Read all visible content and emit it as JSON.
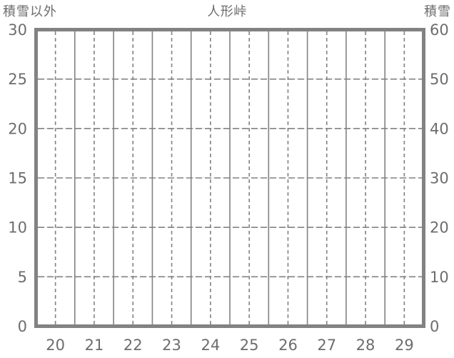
{
  "header": {
    "left_axis_title": "積雪以外",
    "chart_title": "人形峠",
    "right_axis_title": "積雪"
  },
  "colors": {
    "background": "#ffffff",
    "border": "#828282",
    "grid_line": "#828282",
    "faint_grid_underlay": "#e9e9e9",
    "label_text": "#6d6d6d"
  },
  "chart_data": {
    "type": "line",
    "title": "人形峠",
    "x_categories": [
      "20",
      "21",
      "22",
      "23",
      "24",
      "25",
      "26",
      "27",
      "28",
      "29"
    ],
    "left_axis": {
      "title": "積雪以外",
      "ticks": [
        0,
        5,
        10,
        15,
        20,
        25,
        30
      ],
      "range": [
        0,
        30
      ]
    },
    "right_axis": {
      "title": "積雪",
      "ticks": [
        0,
        10,
        20,
        30,
        40,
        50,
        60
      ],
      "range": [
        0,
        60
      ]
    },
    "series": [],
    "grid": {
      "vertical_solid_at": "category boundaries",
      "vertical_dashed_at": "category centers",
      "horizontal_dashed_at_left_ticks": [
        5,
        10,
        15,
        20,
        25
      ],
      "legend": "none",
      "plot_area_empty": true
    }
  }
}
